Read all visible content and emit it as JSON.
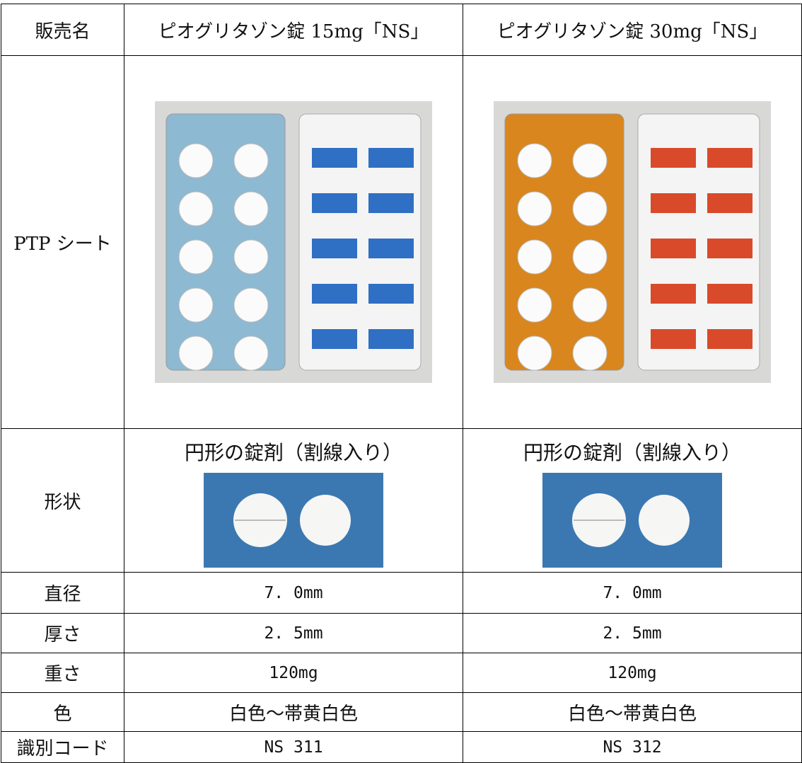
{
  "table": {
    "header": [
      "販売名",
      "ピオグリタゾン錠 15mg「NS」",
      "ピオグリタゾン錠 30mg「NS」"
    ],
    "rows": [
      [
        "PTP シート"
      ],
      [
        "形状",
        "円形の錠剤（割線入り）",
        "円形の錠剤（割線入り）"
      ],
      [
        "直径",
        "7. 0mm",
        "7. 0mm"
      ],
      [
        "厚さ",
        "2. 5mm",
        "2. 5mm"
      ],
      [
        "重さ",
        "120mg",
        "120mg"
      ],
      [
        "色",
        "白色～帯黄白色",
        "白色～帯黄白色"
      ],
      [
        "識別コード",
        "NS 311",
        "NS 312"
      ]
    ]
  }
}
